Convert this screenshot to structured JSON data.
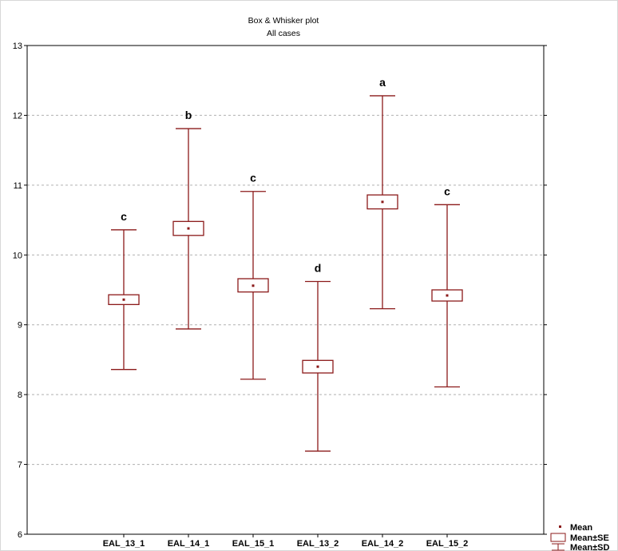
{
  "chart_data": {
    "type": "box",
    "title": "Box & Whisker plot",
    "subtitle": "All cases",
    "categories": [
      "EAL_13_1",
      "EAL_14_1",
      "EAL_15_1",
      "EAL_13_2",
      "EAL_14_2",
      "EAL_15_2"
    ],
    "mean": [
      9.36,
      10.38,
      9.56,
      8.4,
      10.76,
      9.42
    ],
    "se_low": [
      9.29,
      10.28,
      9.47,
      8.31,
      10.66,
      9.34
    ],
    "se_high": [
      9.43,
      10.48,
      9.66,
      8.49,
      10.86,
      9.5
    ],
    "sd_low": [
      8.36,
      8.94,
      8.22,
      7.19,
      9.23,
      8.11
    ],
    "sd_high": [
      10.36,
      11.81,
      10.91,
      9.62,
      12.28,
      10.72
    ],
    "letters": [
      "c",
      "b",
      "c",
      "d",
      "a",
      "c"
    ],
    "ylim": [
      6,
      13
    ],
    "yticks": [
      6,
      7,
      8,
      9,
      10,
      11,
      12,
      13
    ],
    "grid": true,
    "legend": {
      "position": "bottom-right",
      "items": [
        "Mean",
        "Mean±SE",
        "Mean±SD"
      ]
    },
    "colors": {
      "series": "#8b1a1a",
      "grid": "#b0b0b0"
    }
  }
}
